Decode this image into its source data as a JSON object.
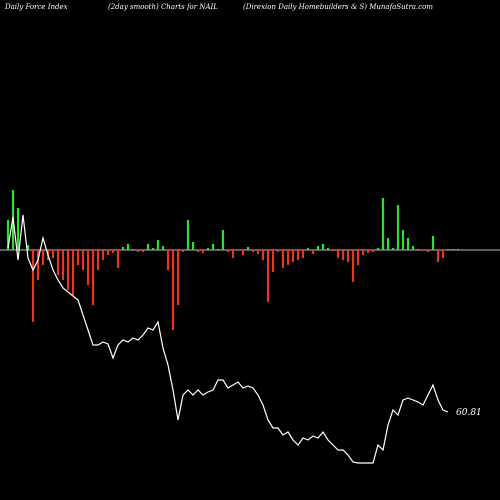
{
  "header": {
    "left": "Daily Force  Index",
    "center": "(2day smooth) Charts for NAIL",
    "right": "(Direxion  Daily Homebuilders & S) MunafaSutra.com"
  },
  "chart_data": {
    "type": "bar",
    "title": "(2day smooth) Charts for NAIL",
    "series": [
      {
        "kind": "bar",
        "bars": [
          {
            "x": 5,
            "v": 30
          },
          {
            "x": 10,
            "v": 60
          },
          {
            "x": 15,
            "v": 42
          },
          {
            "x": 25,
            "v": 5
          },
          {
            "x": 30,
            "v": -72
          },
          {
            "x": 35,
            "v": -30
          },
          {
            "x": 40,
            "v": -15
          },
          {
            "x": 45,
            "v": -10
          },
          {
            "x": 50,
            "v": -8
          },
          {
            "x": 55,
            "v": -25
          },
          {
            "x": 60,
            "v": -30
          },
          {
            "x": 65,
            "v": -40
          },
          {
            "x": 70,
            "v": -45
          },
          {
            "x": 75,
            "v": -15
          },
          {
            "x": 80,
            "v": -20
          },
          {
            "x": 85,
            "v": -35
          },
          {
            "x": 90,
            "v": -55
          },
          {
            "x": 95,
            "v": -20
          },
          {
            "x": 100,
            "v": -10
          },
          {
            "x": 105,
            "v": -5
          },
          {
            "x": 110,
            "v": -3
          },
          {
            "x": 115,
            "v": -18
          },
          {
            "x": 120,
            "v": 3
          },
          {
            "x": 125,
            "v": 6
          },
          {
            "x": 130,
            "v": 1
          },
          {
            "x": 135,
            "v": -2
          },
          {
            "x": 140,
            "v": -2
          },
          {
            "x": 145,
            "v": 6
          },
          {
            "x": 150,
            "v": 2
          },
          {
            "x": 155,
            "v": 10
          },
          {
            "x": 160,
            "v": 4
          },
          {
            "x": 165,
            "v": -20
          },
          {
            "x": 170,
            "v": -80
          },
          {
            "x": 175,
            "v": -55
          },
          {
            "x": 180,
            "v": -2
          },
          {
            "x": 185,
            "v": 30
          },
          {
            "x": 190,
            "v": 8
          },
          {
            "x": 195,
            "v": -2
          },
          {
            "x": 200,
            "v": -3
          },
          {
            "x": 205,
            "v": 2
          },
          {
            "x": 210,
            "v": 6
          },
          {
            "x": 215,
            "v": 1
          },
          {
            "x": 220,
            "v": 20
          },
          {
            "x": 225,
            "v": -2
          },
          {
            "x": 230,
            "v": -8
          },
          {
            "x": 240,
            "v": -5
          },
          {
            "x": 245,
            "v": 3
          },
          {
            "x": 250,
            "v": -2
          },
          {
            "x": 255,
            "v": -4
          },
          {
            "x": 260,
            "v": -10
          },
          {
            "x": 265,
            "v": -52
          },
          {
            "x": 270,
            "v": -22
          },
          {
            "x": 275,
            "v": -2
          },
          {
            "x": 280,
            "v": -18
          },
          {
            "x": 285,
            "v": -15
          },
          {
            "x": 290,
            "v": -12
          },
          {
            "x": 295,
            "v": -10
          },
          {
            "x": 300,
            "v": -8
          },
          {
            "x": 305,
            "v": 2
          },
          {
            "x": 310,
            "v": -4
          },
          {
            "x": 315,
            "v": 4
          },
          {
            "x": 320,
            "v": 6
          },
          {
            "x": 325,
            "v": 2
          },
          {
            "x": 330,
            "v": -1
          },
          {
            "x": 335,
            "v": -8
          },
          {
            "x": 340,
            "v": -10
          },
          {
            "x": 345,
            "v": -12
          },
          {
            "x": 350,
            "v": -32
          },
          {
            "x": 355,
            "v": -15
          },
          {
            "x": 360,
            "v": -5
          },
          {
            "x": 365,
            "v": -3
          },
          {
            "x": 370,
            "v": -2
          },
          {
            "x": 375,
            "v": 2
          },
          {
            "x": 380,
            "v": 52
          },
          {
            "x": 385,
            "v": 12
          },
          {
            "x": 390,
            "v": 2
          },
          {
            "x": 395,
            "v": 45
          },
          {
            "x": 400,
            "v": 20
          },
          {
            "x": 405,
            "v": 12
          },
          {
            "x": 410,
            "v": 4
          },
          {
            "x": 415,
            "v": 1
          },
          {
            "x": 420,
            "v": -1
          },
          {
            "x": 425,
            "v": -2
          },
          {
            "x": 430,
            "v": 14
          },
          {
            "x": 435,
            "v": -12
          },
          {
            "x": 440,
            "v": -8
          },
          {
            "x": 445,
            "v": 1
          },
          {
            "x": 450,
            "v": 1
          },
          {
            "x": 455,
            "v": 1
          }
        ]
      },
      {
        "kind": "line",
        "points": [
          {
            "x": 5,
            "v": 2
          },
          {
            "x": 10,
            "v": 33
          },
          {
            "x": 15,
            "v": -10
          },
          {
            "x": 20,
            "v": 35
          },
          {
            "x": 25,
            "v": -8
          },
          {
            "x": 30,
            "v": -20
          },
          {
            "x": 35,
            "v": -10
          },
          {
            "x": 40,
            "v": 12
          },
          {
            "x": 45,
            "v": -5
          },
          {
            "x": 50,
            "v": -20
          },
          {
            "x": 55,
            "v": -30
          },
          {
            "x": 60,
            "v": -38
          },
          {
            "x": 65,
            "v": -42
          },
          {
            "x": 70,
            "v": -46
          },
          {
            "x": 75,
            "v": -50
          },
          {
            "x": 80,
            "v": -65
          },
          {
            "x": 85,
            "v": -80
          },
          {
            "x": 90,
            "v": -95
          },
          {
            "x": 95,
            "v": -95
          },
          {
            "x": 100,
            "v": -92
          },
          {
            "x": 105,
            "v": -94
          },
          {
            "x": 110,
            "v": -108
          },
          {
            "x": 115,
            "v": -95
          },
          {
            "x": 120,
            "v": -90
          },
          {
            "x": 125,
            "v": -92
          },
          {
            "x": 130,
            "v": -88
          },
          {
            "x": 135,
            "v": -90
          },
          {
            "x": 140,
            "v": -85
          },
          {
            "x": 145,
            "v": -78
          },
          {
            "x": 150,
            "v": -80
          },
          {
            "x": 155,
            "v": -72
          },
          {
            "x": 160,
            "v": -98
          },
          {
            "x": 165,
            "v": -115
          },
          {
            "x": 170,
            "v": -140
          },
          {
            "x": 175,
            "v": -170
          },
          {
            "x": 180,
            "v": -145
          },
          {
            "x": 185,
            "v": -140
          },
          {
            "x": 190,
            "v": -145
          },
          {
            "x": 195,
            "v": -140
          },
          {
            "x": 200,
            "v": -145
          },
          {
            "x": 205,
            "v": -142
          },
          {
            "x": 210,
            "v": -140
          },
          {
            "x": 215,
            "v": -130
          },
          {
            "x": 220,
            "v": -130
          },
          {
            "x": 225,
            "v": -138
          },
          {
            "x": 230,
            "v": -135
          },
          {
            "x": 235,
            "v": -132
          },
          {
            "x": 240,
            "v": -138
          },
          {
            "x": 245,
            "v": -136
          },
          {
            "x": 250,
            "v": -138
          },
          {
            "x": 255,
            "v": -145
          },
          {
            "x": 260,
            "v": -155
          },
          {
            "x": 265,
            "v": -170
          },
          {
            "x": 270,
            "v": -178
          },
          {
            "x": 275,
            "v": -178
          },
          {
            "x": 280,
            "v": -185
          },
          {
            "x": 285,
            "v": -182
          },
          {
            "x": 290,
            "v": -190
          },
          {
            "x": 295,
            "v": -195
          },
          {
            "x": 300,
            "v": -188
          },
          {
            "x": 305,
            "v": -190
          },
          {
            "x": 310,
            "v": -186
          },
          {
            "x": 315,
            "v": -188
          },
          {
            "x": 320,
            "v": -182
          },
          {
            "x": 325,
            "v": -190
          },
          {
            "x": 330,
            "v": -195
          },
          {
            "x": 335,
            "v": -200
          },
          {
            "x": 340,
            "v": -200
          },
          {
            "x": 345,
            "v": -205
          },
          {
            "x": 350,
            "v": -212
          },
          {
            "x": 355,
            "v": -213
          },
          {
            "x": 360,
            "v": -213
          },
          {
            "x": 365,
            "v": -213
          },
          {
            "x": 370,
            "v": -213
          },
          {
            "x": 375,
            "v": -195
          },
          {
            "x": 380,
            "v": -200
          },
          {
            "x": 385,
            "v": -175
          },
          {
            "x": 390,
            "v": -160
          },
          {
            "x": 395,
            "v": -165
          },
          {
            "x": 400,
            "v": -150
          },
          {
            "x": 405,
            "v": -148
          },
          {
            "x": 410,
            "v": -150
          },
          {
            "x": 415,
            "v": -152
          },
          {
            "x": 420,
            "v": -155
          },
          {
            "x": 425,
            "v": -145
          },
          {
            "x": 430,
            "v": -135
          },
          {
            "x": 435,
            "v": -150
          },
          {
            "x": 440,
            "v": -160
          },
          {
            "x": 445,
            "v": -162
          }
        ],
        "last_value_label": "60.81"
      }
    ],
    "colors": {
      "positive": "#33dd33",
      "negative": "#ee3322",
      "line": "#ffffff",
      "zero_line": "#bbbbbb",
      "background": "#000000"
    }
  }
}
